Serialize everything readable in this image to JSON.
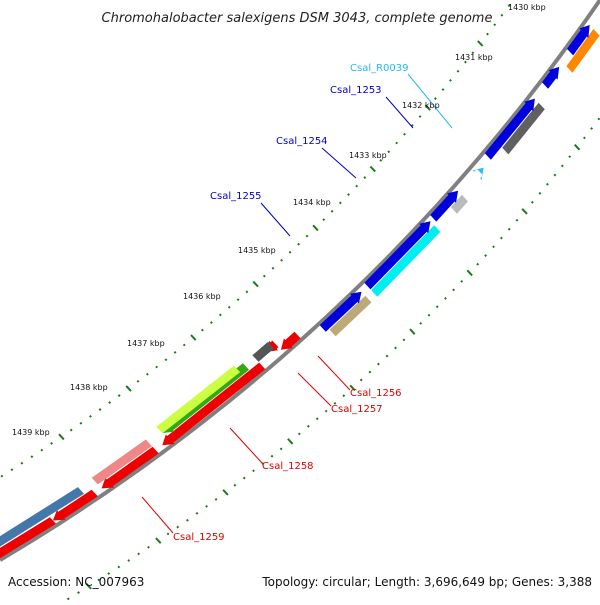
{
  "title": "Chromohalobacter salexigens DSM 3043, complete genome",
  "footer": {
    "accession": "Accession: NC_007963",
    "summary": "Topology: circular; Length: 3,696,649 bp; Genes: 3,388"
  },
  "colors": {
    "backbone": "#808080",
    "ticks": "#1a7a1a",
    "label_forward": "#0000cc",
    "label_reverse": "#dd0000",
    "label_rna": "#22bbee"
  },
  "kbp_ticks": [
    "1430 kbp",
    "1431 kbp",
    "1432 kbp",
    "1433 kbp",
    "1434 kbp",
    "1435 kbp",
    "1436 kbp",
    "1437 kbp",
    "1438 kbp",
    "1439 kbp"
  ],
  "gene_labels": [
    {
      "name": "Csal_R0039",
      "strand": "rna"
    },
    {
      "name": "Csal_1253",
      "strand": "forward"
    },
    {
      "name": "Csal_1254",
      "strand": "forward"
    },
    {
      "name": "Csal_1255",
      "strand": "forward"
    },
    {
      "name": "Csal_1256",
      "strand": "reverse"
    },
    {
      "name": "Csal_1257",
      "strand": "reverse"
    },
    {
      "name": "Csal_1258",
      "strand": "reverse"
    },
    {
      "name": "Csal_1259",
      "strand": "reverse"
    }
  ]
}
